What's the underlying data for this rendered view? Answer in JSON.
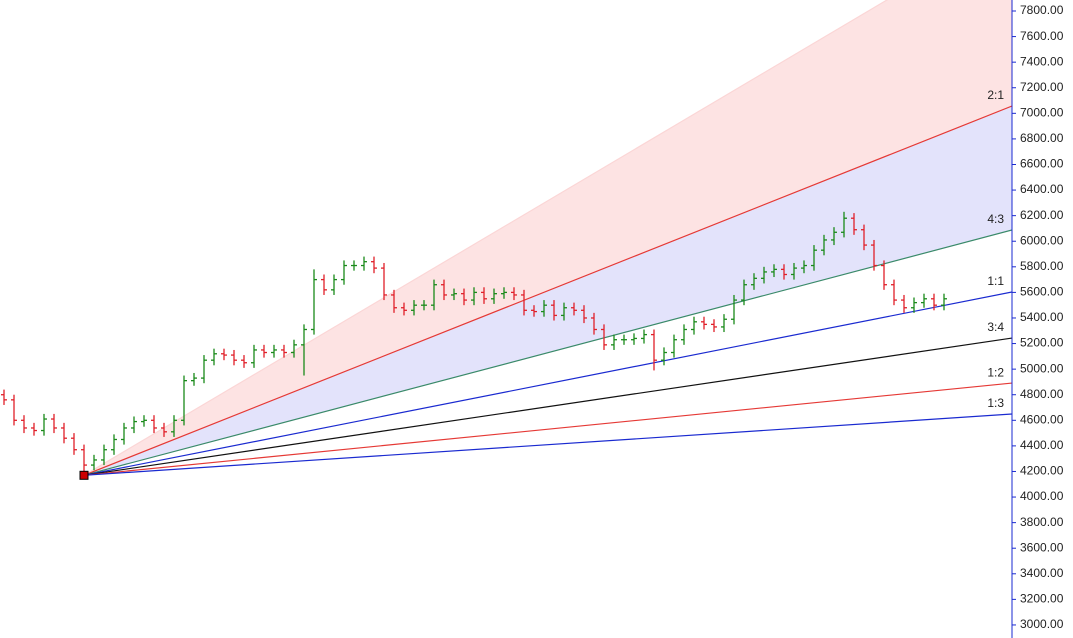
{
  "chart_data": {
    "type": "ohlc",
    "ylim": [
      2898,
      7886
    ],
    "yticks": [
      {
        "value": 3000,
        "label": "3000.00"
      },
      {
        "value": 3200,
        "label": "3200.00"
      },
      {
        "value": 3400,
        "label": "3400.00"
      },
      {
        "value": 3600,
        "label": "3600.00"
      },
      {
        "value": 3800,
        "label": "3800.00"
      },
      {
        "value": 4000,
        "label": "4000.00"
      },
      {
        "value": 4200,
        "label": "4200.00"
      },
      {
        "value": 4400,
        "label": "4400.00"
      },
      {
        "value": 4600,
        "label": "4600.00"
      },
      {
        "value": 4800,
        "label": "4800.00"
      },
      {
        "value": 5000,
        "label": "5000.00"
      },
      {
        "value": 5200,
        "label": "5200.00"
      },
      {
        "value": 5400,
        "label": "5400.00"
      },
      {
        "value": 5600,
        "label": "5600.00"
      },
      {
        "value": 5800,
        "label": "5800.00"
      },
      {
        "value": 6000,
        "label": "6000.00"
      },
      {
        "value": 6200,
        "label": "6200.00"
      },
      {
        "value": 6400,
        "label": "6400.00"
      },
      {
        "value": 6600,
        "label": "6600.00"
      },
      {
        "value": 6800,
        "label": "6800.00"
      },
      {
        "value": 7000,
        "label": "7000.00"
      },
      {
        "value": 7200,
        "label": "7200.00"
      },
      {
        "value": 7400,
        "label": "7400.00"
      },
      {
        "value": 7600,
        "label": "7600.00"
      },
      {
        "value": 7800,
        "label": "7800.00"
      }
    ],
    "up_color": "#1a8a1a",
    "down_color": "#e0202a",
    "open": [
      4800,
      4760,
      4600,
      4540,
      4520,
      4610,
      4540,
      4460,
      4370,
      4250,
      4290,
      4370,
      4450,
      4540,
      4590,
      4600,
      4540,
      4510,
      4600,
      4910,
      4930,
      5070,
      5120,
      5110,
      5070,
      5050,
      5150,
      5130,
      5150,
      5130,
      5190,
      5310,
      5700,
      5620,
      5700,
      5810,
      5810,
      5840,
      5790,
      5580,
      5480,
      5460,
      5500,
      5500,
      5660,
      5580,
      5590,
      5540,
      5600,
      5550,
      5590,
      5600,
      5580,
      5460,
      5450,
      5500,
      5420,
      5480,
      5460,
      5400,
      5310,
      5190,
      5230,
      5230,
      5240,
      5270,
      5070,
      5130,
      5230,
      5310,
      5370,
      5350,
      5330,
      5390,
      5540,
      5660,
      5710,
      5760,
      5780,
      5740,
      5790,
      5810,
      5930,
      6010,
      6070,
      6180,
      6090,
      5970,
      5810,
      5660,
      5540,
      5480,
      5520,
      5550,
      5500
    ],
    "high": [
      4840,
      4800,
      4640,
      4580,
      4650,
      4650,
      4580,
      4500,
      4410,
      4330,
      4410,
      4490,
      4580,
      4630,
      4640,
      4640,
      4580,
      4640,
      4950,
      4970,
      5110,
      5160,
      5160,
      5150,
      5110,
      5190,
      5190,
      5190,
      5190,
      5230,
      5350,
      5780,
      5740,
      5740,
      5850,
      5850,
      5880,
      5880,
      5830,
      5620,
      5520,
      5540,
      5540,
      5700,
      5700,
      5630,
      5630,
      5640,
      5640,
      5630,
      5640,
      5640,
      5620,
      5500,
      5540,
      5540,
      5520,
      5520,
      5500,
      5440,
      5350,
      5270,
      5270,
      5280,
      5310,
      5310,
      5170,
      5270,
      5350,
      5410,
      5410,
      5390,
      5430,
      5580,
      5700,
      5750,
      5800,
      5820,
      5820,
      5830,
      5850,
      5970,
      6050,
      6110,
      6230,
      6220,
      6130,
      6010,
      5850,
      5700,
      5580,
      5560,
      5590,
      5590,
      5590
    ],
    "low": [
      4720,
      4560,
      4500,
      4480,
      4480,
      4500,
      4420,
      4330,
      4170,
      4210,
      4250,
      4330,
      4410,
      4500,
      4550,
      4500,
      4470,
      4470,
      4560,
      4870,
      4890,
      5030,
      5070,
      5030,
      5010,
      5010,
      5090,
      5090,
      5090,
      5090,
      4950,
      5270,
      5580,
      5580,
      5660,
      5770,
      5770,
      5750,
      5540,
      5440,
      5420,
      5420,
      5460,
      5460,
      5540,
      5540,
      5500,
      5500,
      5510,
      5510,
      5550,
      5540,
      5420,
      5410,
      5410,
      5380,
      5380,
      5420,
      5360,
      5270,
      5150,
      5150,
      5190,
      5190,
      5200,
      4990,
      5030,
      5090,
      5190,
      5270,
      5310,
      5290,
      5290,
      5350,
      5500,
      5620,
      5670,
      5720,
      5700,
      5700,
      5750,
      5770,
      5890,
      5970,
      6030,
      6050,
      5930,
      5770,
      5620,
      5500,
      5440,
      5440,
      5480,
      5460,
      5460
    ],
    "close": [
      4760,
      4600,
      4540,
      4520,
      4610,
      4540,
      4460,
      4370,
      4250,
      4290,
      4370,
      4450,
      4540,
      4590,
      4600,
      4540,
      4510,
      4600,
      4910,
      4930,
      5070,
      5120,
      5110,
      5070,
      5050,
      5150,
      5130,
      5150,
      5130,
      5190,
      5310,
      5700,
      5620,
      5700,
      5810,
      5810,
      5840,
      5790,
      5580,
      5480,
      5460,
      5500,
      5500,
      5660,
      5580,
      5590,
      5540,
      5600,
      5550,
      5590,
      5600,
      5580,
      5460,
      5450,
      5500,
      5420,
      5480,
      5460,
      5400,
      5310,
      5190,
      5230,
      5230,
      5240,
      5270,
      5070,
      5130,
      5230,
      5310,
      5370,
      5350,
      5330,
      5390,
      5540,
      5660,
      5710,
      5760,
      5780,
      5740,
      5790,
      5810,
      5930,
      6010,
      6070,
      6180,
      6090,
      5970,
      5810,
      5660,
      5540,
      5480,
      5520,
      5550,
      5500,
      5550
    ],
    "fan": {
      "origin": 4170,
      "origin_color": "#cc0000",
      "lines": [
        {
          "end": 8465,
          "color": "#fbd6d6"
        },
        {
          "label": "2:1",
          "end": 7057,
          "color": "#e53935"
        },
        {
          "label": "4:3",
          "end": 6088,
          "color": "#3a8a6a"
        },
        {
          "label": "1:1",
          "end": 5603,
          "color": "#1a2ad0"
        },
        {
          "label": "3:4",
          "end": 5243,
          "color": "#111111"
        },
        {
          "label": "1:2",
          "end": 4891,
          "color": "#e53935"
        },
        {
          "label": "1:3",
          "end": 4649,
          "color": "#1a2ad0"
        }
      ],
      "fills": [
        "#fde3e3",
        "#e3e3fb"
      ]
    }
  }
}
